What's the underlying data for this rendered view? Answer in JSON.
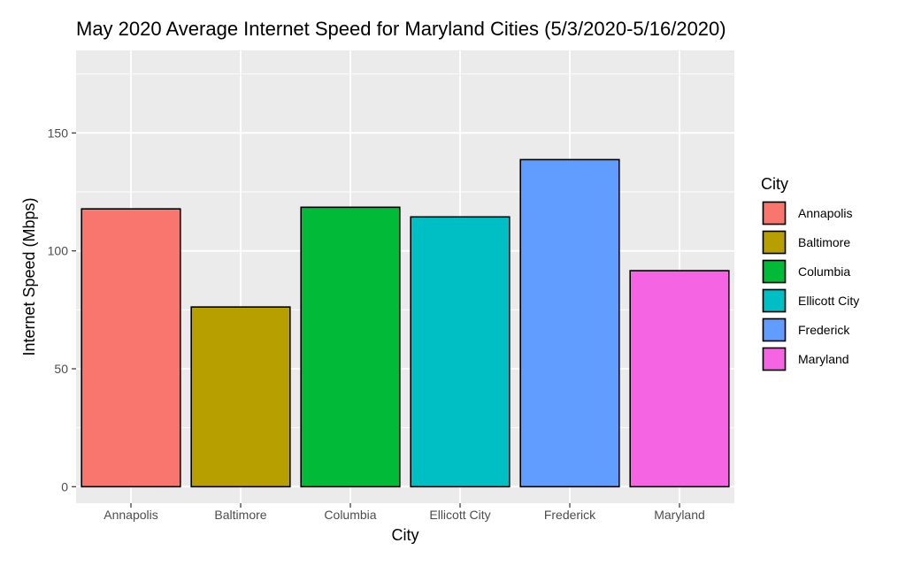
{
  "chart_data": {
    "type": "bar",
    "title": "May 2020 Average Internet Speed for Maryland Cities (5/3/2020-5/16/2020)",
    "xlabel": "City",
    "ylabel": "Internet Speed (Mbps)",
    "categories": [
      "Annapolis",
      "Baltimore",
      "Columbia",
      "Ellicott City",
      "Frederick",
      "Maryland"
    ],
    "values": [
      117.8,
      76.2,
      118.5,
      114.4,
      138.7,
      91.6
    ],
    "colors": [
      "#F8766D",
      "#B79F00",
      "#00BA38",
      "#00BFC4",
      "#619CFF",
      "#F564E3"
    ],
    "ylim": [
      -7,
      185
    ],
    "yticks": [
      0,
      50,
      100,
      150
    ],
    "grid": true,
    "panel_background": "#EBEBEB",
    "legend": {
      "title": "City",
      "position": "right",
      "entries": [
        "Annapolis",
        "Baltimore",
        "Columbia",
        "Ellicott City",
        "Frederick",
        "Maryland"
      ]
    }
  }
}
